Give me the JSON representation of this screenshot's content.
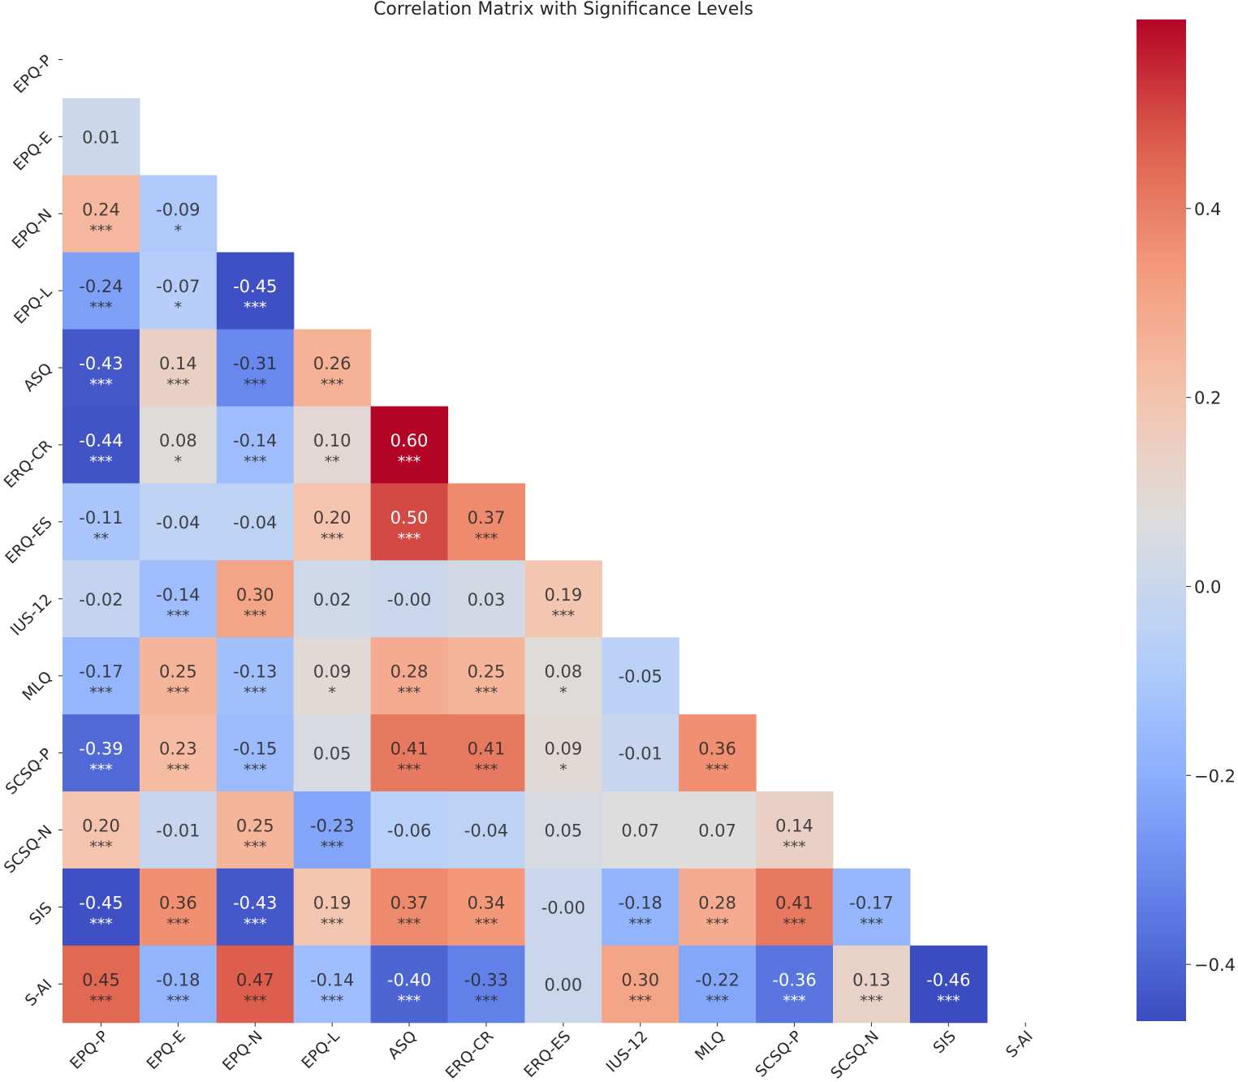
{
  "chart_data": {
    "type": "heatmap",
    "title": "Correlation Matrix with Significance Levels",
    "labels": [
      "EPQ-P",
      "EPQ-E",
      "EPQ-N",
      "EPQ-L",
      "ASQ",
      "ERQ-CR",
      "ERQ-ES",
      "IUS-12",
      "MLQ",
      "SCSQ-P",
      "SCSQ-N",
      "SIS",
      "S-AI"
    ],
    "mask": "upper-triangle-including-diagonal",
    "values": [
      [],
      [
        0.01
      ],
      [
        0.24,
        -0.09
      ],
      [
        -0.24,
        -0.07,
        -0.45
      ],
      [
        -0.43,
        0.14,
        -0.31,
        0.26
      ],
      [
        -0.44,
        0.08,
        -0.14,
        0.1,
        0.6
      ],
      [
        -0.11,
        -0.04,
        -0.04,
        0.2,
        0.5,
        0.37
      ],
      [
        -0.02,
        -0.14,
        0.3,
        0.02,
        -0.0,
        0.03,
        0.19
      ],
      [
        -0.17,
        0.25,
        -0.13,
        0.09,
        0.28,
        0.25,
        0.08,
        -0.05
      ],
      [
        -0.39,
        0.23,
        -0.15,
        0.05,
        0.41,
        0.41,
        0.09,
        -0.01,
        0.36
      ],
      [
        0.2,
        -0.01,
        0.25,
        -0.23,
        -0.06,
        -0.04,
        0.05,
        0.07,
        0.07,
        0.14
      ],
      [
        -0.45,
        0.36,
        -0.43,
        0.19,
        0.37,
        0.34,
        -0.0,
        -0.18,
        0.28,
        0.41,
        -0.17
      ],
      [
        0.45,
        -0.18,
        0.47,
        -0.14,
        -0.4,
        -0.33,
        0.0,
        0.3,
        -0.22,
        -0.36,
        0.13,
        -0.46
      ]
    ],
    "value_labels": [
      [],
      [
        "0.01"
      ],
      [
        "0.24",
        "-0.09"
      ],
      [
        "-0.24",
        "-0.07",
        "-0.45"
      ],
      [
        "-0.43",
        "0.14",
        "-0.31",
        "0.26"
      ],
      [
        "-0.44",
        "0.08",
        "-0.14",
        "0.10",
        "0.60"
      ],
      [
        "-0.11",
        "-0.04",
        "-0.04",
        "0.20",
        "0.50",
        "0.37"
      ],
      [
        "-0.02",
        "-0.14",
        "0.30",
        "0.02",
        "-0.00",
        "0.03",
        "0.19"
      ],
      [
        "-0.17",
        "0.25",
        "-0.13",
        "0.09",
        "0.28",
        "0.25",
        "0.08",
        "-0.05"
      ],
      [
        "-0.39",
        "0.23",
        "-0.15",
        "0.05",
        "0.41",
        "0.41",
        "0.09",
        "-0.01",
        "0.36"
      ],
      [
        "0.20",
        "-0.01",
        "0.25",
        "-0.23",
        "-0.06",
        "-0.04",
        "0.05",
        "0.07",
        "0.07",
        "0.14"
      ],
      [
        "-0.45",
        "0.36",
        "-0.43",
        "0.19",
        "0.37",
        "0.34",
        "-0.00",
        "-0.18",
        "0.28",
        "0.41",
        "-0.17"
      ],
      [
        "0.45",
        "-0.18",
        "0.47",
        "-0.14",
        "-0.40",
        "-0.33",
        "0.00",
        "0.30",
        "-0.22",
        "-0.36",
        "0.13",
        "-0.46"
      ]
    ],
    "significance": [
      [],
      [
        ""
      ],
      [
        "***",
        "*"
      ],
      [
        "***",
        "*",
        "***"
      ],
      [
        "***",
        "***",
        "***",
        "***"
      ],
      [
        "***",
        "*",
        "***",
        "**",
        "***"
      ],
      [
        "**",
        "",
        "",
        "***",
        "***",
        "***"
      ],
      [
        "",
        "***",
        "***",
        "",
        "",
        "",
        "***"
      ],
      [
        "***",
        "***",
        "***",
        "*",
        "***",
        "***",
        "*",
        ""
      ],
      [
        "***",
        "***",
        "***",
        "",
        "***",
        "***",
        "*",
        "",
        "***"
      ],
      [
        "***",
        "",
        "***",
        "***",
        "",
        "",
        "",
        "",
        "",
        "***"
      ],
      [
        "***",
        "***",
        "***",
        "***",
        "***",
        "***",
        "",
        "***",
        "***",
        "***",
        "***"
      ],
      [
        "***",
        "***",
        "***",
        "***",
        "***",
        "***",
        "",
        "***",
        "***",
        "***",
        "***",
        "***"
      ]
    ],
    "colormap": "coolwarm",
    "vmin": -0.46,
    "vmax": 0.6,
    "colorbar": {
      "ticks": [
        0.4,
        0.2,
        0.0,
        -0.2,
        -0.4
      ],
      "tick_labels": [
        "0.4",
        "0.2",
        "0.0",
        "−0.2",
        "−0.4"
      ]
    }
  },
  "colors": {
    "text_dark": "#262626",
    "text_light": "#ffffff"
  }
}
